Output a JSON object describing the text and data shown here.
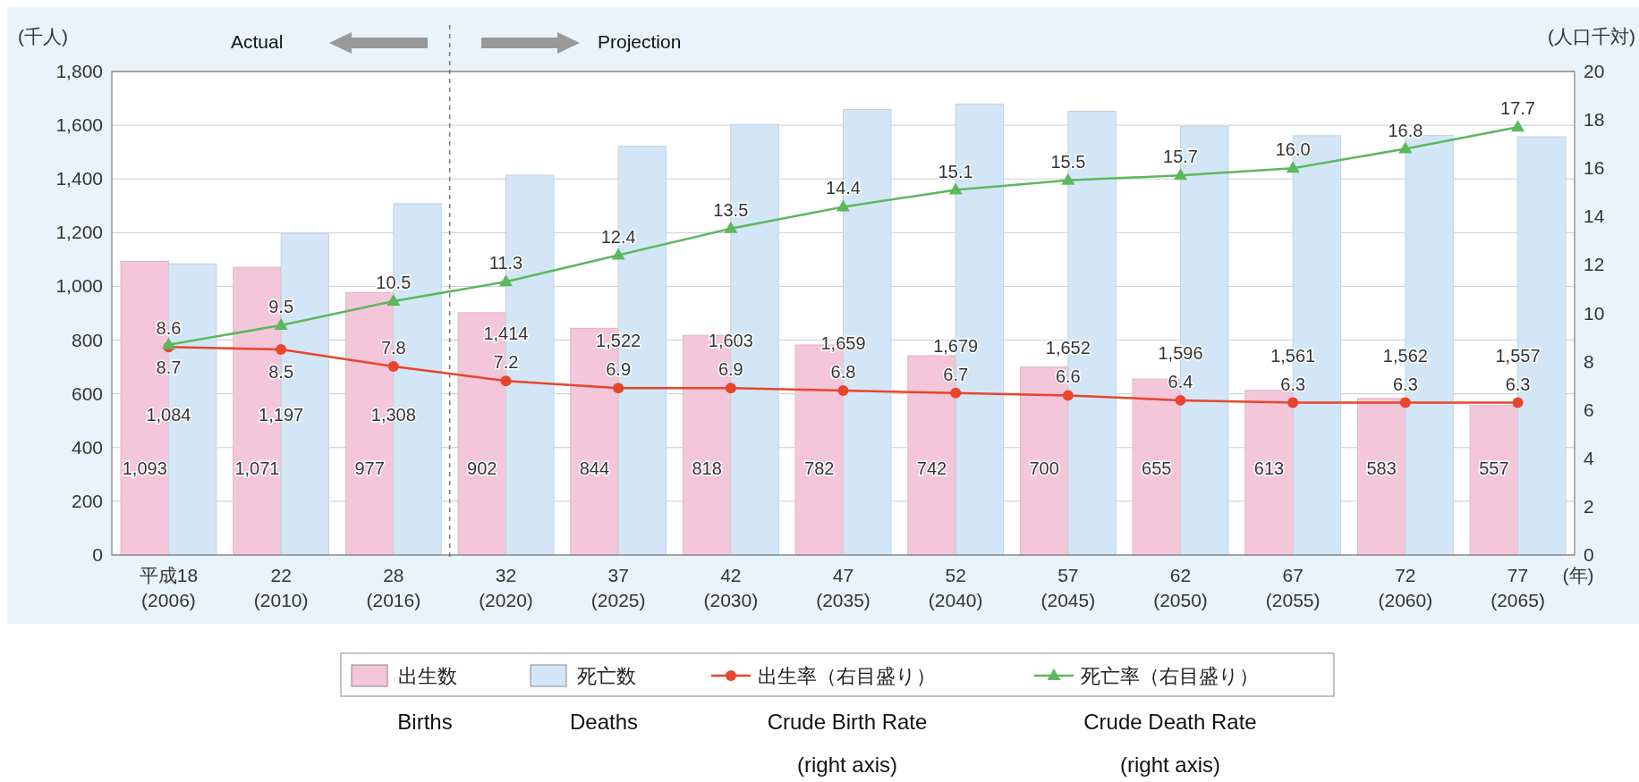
{
  "chart_data": {
    "type": "bar",
    "ylabel": "(千人)",
    "y2label": "(人口千対)",
    "xlabel": "(年)",
    "categories": [
      "平成18\n(2006)",
      "22\n(2010)",
      "28\n(2016)",
      "32\n(2020)",
      "37\n(2025)",
      "42\n(2030)",
      "47\n(2035)",
      "52\n(2040)",
      "57\n(2045)",
      "62\n(2050)",
      "67\n(2055)",
      "72\n(2060)",
      "77\n(2065)"
    ],
    "series": [
      {
        "name": "出生数\nBirths",
        "color": "#f4c6da",
        "values": [
          1093,
          1071,
          977,
          902,
          844,
          818,
          782,
          742,
          700,
          655,
          613,
          583,
          557
        ],
        "value_labels": [
          "1,093",
          "1,071",
          "977",
          "902",
          "844",
          "818",
          "782",
          "742",
          "700",
          "655",
          "613",
          "583",
          "557"
        ]
      },
      {
        "name": "死亡数\nDeaths",
        "color": "#d3e6f7",
        "values": [
          1084,
          1197,
          1308,
          1414,
          1522,
          1603,
          1659,
          1679,
          1652,
          1596,
          1561,
          1562,
          1557
        ],
        "value_labels": [
          "1,084",
          "1,197",
          "1,308",
          "1,414",
          "1,522",
          "1,603",
          "1,659",
          "1,679",
          "1,652",
          "1,596",
          "1,561",
          "1,562",
          "1,557"
        ]
      },
      {
        "name": "出生率（右目盛り）\nCrude Birth Rate\n(right axis)",
        "type": "line",
        "axis": "y2",
        "marker": "circle",
        "color": "#e8452c",
        "values": [
          8.6,
          8.5,
          7.8,
          7.2,
          6.9,
          6.9,
          6.8,
          6.7,
          6.6,
          6.4,
          6.3,
          6.3,
          6.3
        ],
        "value_labels": [
          "8.6",
          "8.5",
          "7.8",
          "7.2",
          "6.9",
          "6.9",
          "6.8",
          "6.7",
          "6.6",
          "6.4",
          "6.3",
          "6.3",
          "6.3"
        ]
      },
      {
        "name": "死亡率（右目盛り）\nCrude Death Rate\n(right axis)",
        "type": "line",
        "axis": "y2",
        "marker": "triangle",
        "color": "#5cb85c",
        "values": [
          8.7,
          9.5,
          10.5,
          11.3,
          12.4,
          13.5,
          14.4,
          15.1,
          15.5,
          15.7,
          16.0,
          16.8,
          17.7
        ],
        "value_labels": [
          "8.7",
          "9.5",
          "10.5",
          "11.3",
          "12.4",
          "13.5",
          "14.4",
          "15.1",
          "15.5",
          "15.7",
          "16.0",
          "16.8",
          "17.7"
        ]
      }
    ],
    "ylim": [
      0,
      1800
    ],
    "yticks": [
      0,
      200,
      400,
      600,
      800,
      {
        "value": 1000,
        "label": "1,000"
      },
      {
        "value": 1200,
        "label": "1,200"
      },
      {
        "value": 1400,
        "label": "1,400"
      },
      {
        "value": 1600,
        "label": "1,600"
      },
      {
        "value": 1800,
        "label": "1,800"
      }
    ],
    "y2lim": [
      0,
      20
    ],
    "y2ticks": [
      0,
      2,
      4,
      6,
      8,
      10,
      12,
      14,
      16,
      18,
      20
    ],
    "grid": "y",
    "legend": "bottom",
    "annotations": [
      "Actual",
      "Projection"
    ]
  }
}
